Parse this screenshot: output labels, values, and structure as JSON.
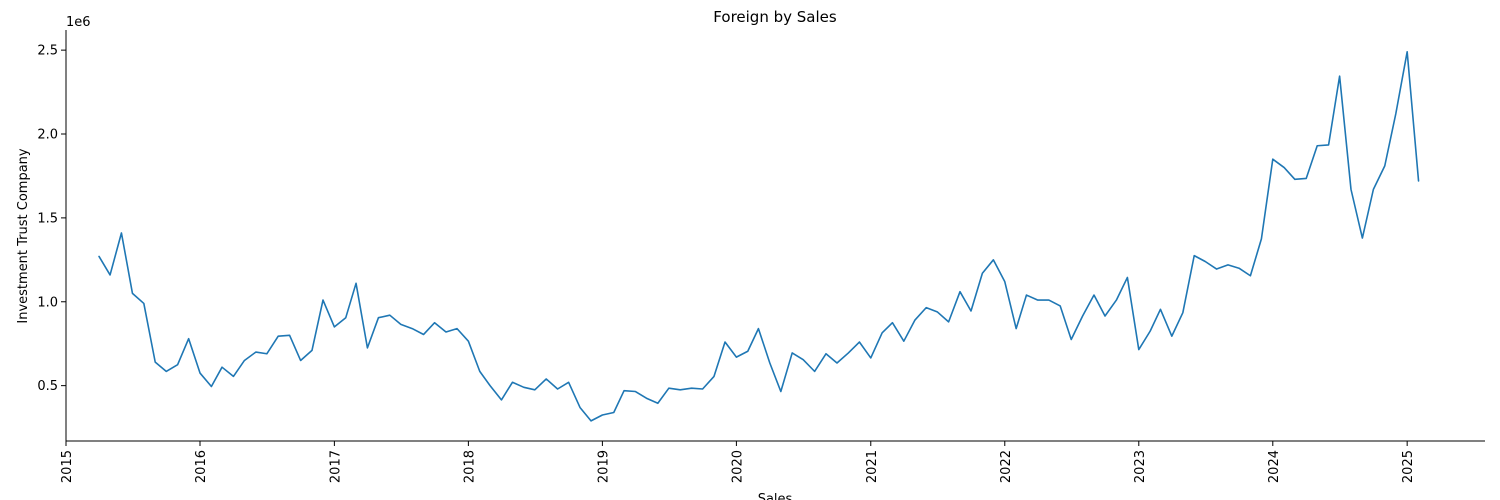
{
  "chart_data": {
    "type": "line",
    "title": "Foreign by Sales",
    "xlabel": "Sales",
    "ylabel": "Investment Trust Company",
    "y_offset_label": "1e6",
    "xlim": [
      "2015-01-01",
      "2025-08-01"
    ],
    "ylim": [
      170000,
      2620000
    ],
    "x_ticks": [
      {
        "value": "2015-01-01",
        "label": "2015"
      },
      {
        "value": "2016-01-01",
        "label": "2016"
      },
      {
        "value": "2017-01-01",
        "label": "2017"
      },
      {
        "value": "2018-01-01",
        "label": "2018"
      },
      {
        "value": "2019-01-01",
        "label": "2019"
      },
      {
        "value": "2020-01-01",
        "label": "2020"
      },
      {
        "value": "2021-01-01",
        "label": "2021"
      },
      {
        "value": "2022-01-01",
        "label": "2022"
      },
      {
        "value": "2023-01-01",
        "label": "2023"
      },
      {
        "value": "2024-01-01",
        "label": "2024"
      },
      {
        "value": "2025-01-01",
        "label": "2025"
      }
    ],
    "y_ticks": [
      {
        "value": 500000,
        "label": "0.5"
      },
      {
        "value": 1000000,
        "label": "1.0"
      },
      {
        "value": 1500000,
        "label": "1.5"
      },
      {
        "value": 2000000,
        "label": "2.0"
      },
      {
        "value": 2500000,
        "label": "2.5"
      }
    ],
    "grid": false,
    "color": "#1f77b4",
    "series": [
      {
        "x": [
          "2015-04-01",
          "2015-05-01",
          "2015-06-01",
          "2015-07-01",
          "2015-08-01",
          "2015-09-01",
          "2015-10-01",
          "2015-11-01",
          "2015-12-01",
          "2016-01-01",
          "2016-02-01",
          "2016-03-01",
          "2016-04-01",
          "2016-05-01",
          "2016-06-01",
          "2016-07-01",
          "2016-08-01",
          "2016-09-01",
          "2016-10-01",
          "2016-11-01",
          "2016-12-01",
          "2017-01-01",
          "2017-02-01",
          "2017-03-01",
          "2017-04-01",
          "2017-05-01",
          "2017-06-01",
          "2017-07-01",
          "2017-08-01",
          "2017-09-01",
          "2017-10-01",
          "2017-11-01",
          "2017-12-01",
          "2018-01-01",
          "2018-02-01",
          "2018-03-01",
          "2018-04-01",
          "2018-05-01",
          "2018-06-01",
          "2018-07-01",
          "2018-08-01",
          "2018-09-01",
          "2018-10-01",
          "2018-11-01",
          "2018-12-01",
          "2019-01-01",
          "2019-02-01",
          "2019-03-01",
          "2019-04-01",
          "2019-05-01",
          "2019-06-01",
          "2019-07-01",
          "2019-08-01",
          "2019-09-01",
          "2019-10-01",
          "2019-11-01",
          "2019-12-01",
          "2020-01-01",
          "2020-02-01",
          "2020-03-01",
          "2020-04-01",
          "2020-05-01",
          "2020-06-01",
          "2020-07-01",
          "2020-08-01",
          "2020-09-01",
          "2020-10-01",
          "2020-11-01",
          "2020-12-01",
          "2021-01-01",
          "2021-02-01",
          "2021-03-01",
          "2021-04-01",
          "2021-05-01",
          "2021-06-01",
          "2021-07-01",
          "2021-08-01",
          "2021-09-01",
          "2021-10-01",
          "2021-11-01",
          "2021-12-01",
          "2022-01-01",
          "2022-02-01",
          "2022-03-01",
          "2022-04-01",
          "2022-05-01",
          "2022-06-01",
          "2022-07-01",
          "2022-08-01",
          "2022-09-01",
          "2022-10-01",
          "2022-11-01",
          "2022-12-01",
          "2023-01-01",
          "2023-02-01",
          "2023-03-01",
          "2023-04-01",
          "2023-05-01",
          "2023-06-01",
          "2023-07-01",
          "2023-08-01",
          "2023-09-01",
          "2023-10-01",
          "2023-11-01",
          "2023-12-01",
          "2024-01-01",
          "2024-02-01",
          "2024-03-01",
          "2024-04-01",
          "2024-05-01",
          "2024-06-01",
          "2024-07-01",
          "2024-08-01",
          "2024-09-01",
          "2024-10-01",
          "2024-11-01",
          "2024-12-01",
          "2025-01-01",
          "2025-02-01"
        ],
        "y": [
          1270000,
          1160000,
          1410000,
          1050000,
          990000,
          640000,
          585000,
          625000,
          780000,
          575000,
          495000,
          610000,
          555000,
          650000,
          700000,
          690000,
          795000,
          800000,
          650000,
          710000,
          1010000,
          850000,
          905000,
          1110000,
          725000,
          905000,
          920000,
          865000,
          840000,
          805000,
          875000,
          820000,
          840000,
          765000,
          585000,
          500000,
          415000,
          520000,
          490000,
          475000,
          540000,
          480000,
          520000,
          370000,
          290000,
          325000,
          340000,
          470000,
          465000,
          425000,
          395000,
          485000,
          475000,
          485000,
          480000,
          555000,
          760000,
          670000,
          705000,
          840000,
          635000,
          465000,
          695000,
          655000,
          585000,
          690000,
          635000,
          695000,
          760000,
          665000,
          815000,
          875000,
          765000,
          890000,
          965000,
          940000,
          880000,
          1060000,
          945000,
          1170000,
          1250000,
          1120000,
          840000,
          1040000,
          1010000,
          1010000,
          975000,
          775000,
          915000,
          1040000,
          915000,
          1010000,
          1145000,
          715000,
          825000,
          955000,
          795000,
          935000,
          1275000,
          1240000,
          1195000,
          1220000,
          1200000,
          1155000,
          1375000,
          1850000,
          1800000,
          1730000,
          1735000,
          1930000,
          1935000,
          2345000,
          1670000,
          1380000,
          1670000,
          1810000,
          2120000,
          2490000,
          1720000
        ]
      }
    ]
  }
}
